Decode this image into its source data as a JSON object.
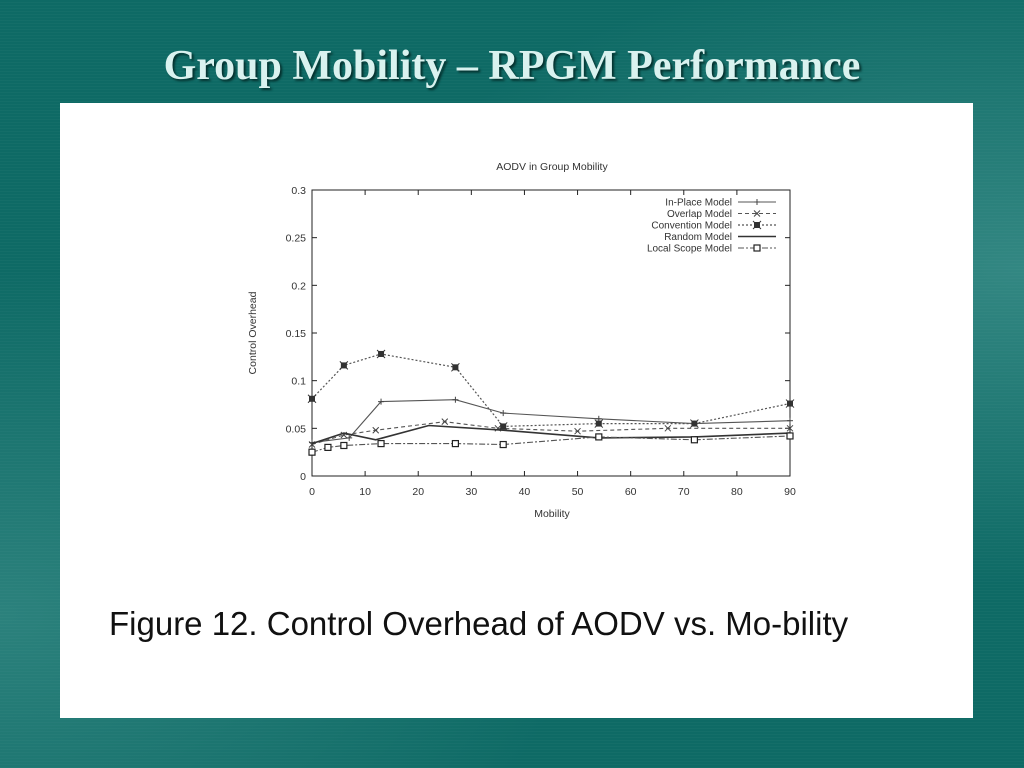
{
  "slide": {
    "title": "Group Mobility – RPGM Performance",
    "caption": "Figure 12. Control Overhead of AODV vs. Mo-bility"
  },
  "colors": {
    "background": "#0e6a65",
    "title": "#d9f2ef",
    "panel": "#ffffff"
  },
  "chart_data": {
    "type": "line",
    "title": "AODV in Group Mobility",
    "xlabel": "Mobility",
    "ylabel": "Control Overhead",
    "xlim": [
      0,
      90
    ],
    "ylim": [
      0,
      0.3
    ],
    "xticks": [
      0,
      10,
      20,
      30,
      40,
      50,
      60,
      70,
      80,
      90
    ],
    "yticks": [
      0,
      0.05,
      0.1,
      0.15,
      0.2,
      0.25,
      0.3
    ],
    "xtick_labels": [
      "0",
      "10",
      "20",
      "30",
      "40",
      "50",
      "60",
      "70",
      "80",
      "90"
    ],
    "ytick_labels": [
      "0",
      "0.05",
      "0.1",
      "0.15",
      "0.2",
      "0.25",
      "0.3"
    ],
    "grid": false,
    "legend_position": "top-right",
    "series": [
      {
        "name": "In-Place Model",
        "marker": "plus",
        "dash": "solid",
        "x": [
          0,
          7,
          13,
          27,
          36,
          54,
          72,
          90
        ],
        "y": [
          0.035,
          0.04,
          0.078,
          0.08,
          0.066,
          0.06,
          0.055,
          0.058
        ]
      },
      {
        "name": "Overlap Model",
        "marker": "cross",
        "dash": "dashed",
        "x": [
          0,
          6,
          12,
          25,
          35,
          50,
          67,
          90
        ],
        "y": [
          0.033,
          0.043,
          0.048,
          0.057,
          0.05,
          0.047,
          0.05,
          0.05
        ]
      },
      {
        "name": "Convention Model",
        "marker": "star",
        "dash": "dotted",
        "x": [
          0,
          6,
          13,
          27,
          36,
          54,
          72,
          90
        ],
        "y": [
          0.081,
          0.116,
          0.128,
          0.114,
          0.052,
          0.055,
          0.055,
          0.076
        ]
      },
      {
        "name": "Random Model",
        "marker": "none",
        "dash": "solid-bold",
        "x": [
          0,
          6,
          12,
          22,
          36,
          54,
          72,
          90
        ],
        "y": [
          0.034,
          0.045,
          0.038,
          0.053,
          0.048,
          0.04,
          0.041,
          0.045
        ]
      },
      {
        "name": "Local Scope Model",
        "marker": "square",
        "dash": "dashdot",
        "x": [
          0,
          3,
          6,
          13,
          27,
          36,
          54,
          72,
          90
        ],
        "y": [
          0.025,
          0.03,
          0.032,
          0.034,
          0.034,
          0.033,
          0.041,
          0.038,
          0.042
        ]
      }
    ]
  }
}
